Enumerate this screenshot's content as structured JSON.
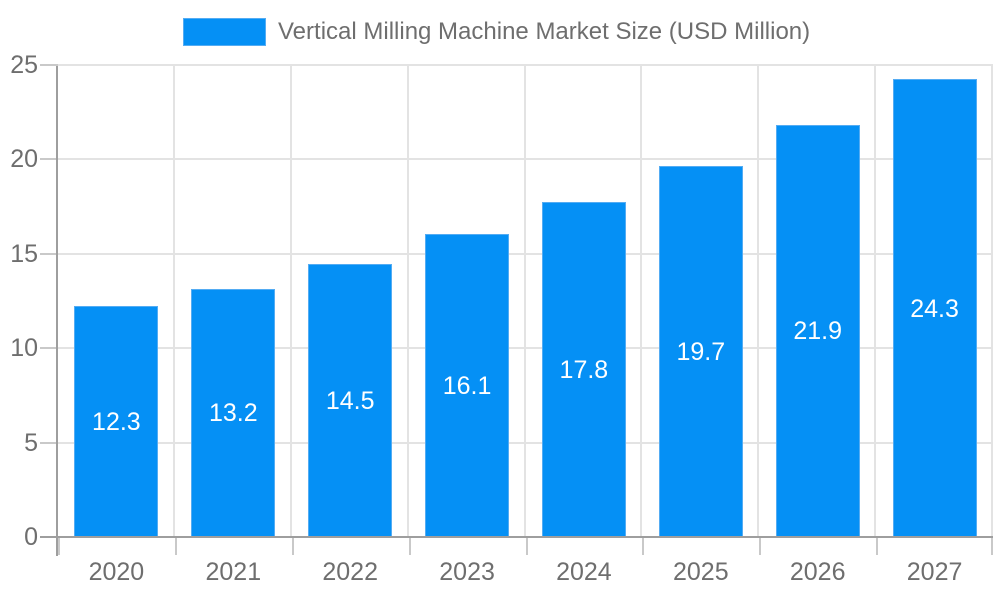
{
  "legend": {
    "label": "Vertical Milling Machine Market Size (USD Million)"
  },
  "chart_data": {
    "type": "bar",
    "title": "Vertical Milling Machine Market Size (USD Million)",
    "categories": [
      "2020",
      "2021",
      "2022",
      "2023",
      "2024",
      "2025",
      "2026",
      "2027"
    ],
    "series": [
      {
        "name": "Vertical Milling Machine Market Size (USD Million)",
        "values": [
          12.3,
          13.2,
          14.5,
          16.1,
          17.8,
          19.7,
          21.9,
          24.3
        ]
      }
    ],
    "bar_labels": [
      "12.3",
      "13.2",
      "14.5",
      "16.1",
      "17.8",
      "19.7",
      "21.9",
      "24.3"
    ],
    "xlabel": "",
    "ylabel": "",
    "ylim": [
      0,
      25
    ],
    "yticks": [
      0,
      5,
      10,
      15,
      20,
      25
    ],
    "grid": true,
    "legend_position": "top",
    "colors": {
      "bar_fill": "#0590f5",
      "bar_border": "#54acf3",
      "grid": "#e3e3e3",
      "tick": "#c9c9c9",
      "axis": "#9e9e9e",
      "tick_text": "#6e6e6e",
      "bar_label_text": "#ffffff",
      "background": "#ffffff"
    }
  }
}
